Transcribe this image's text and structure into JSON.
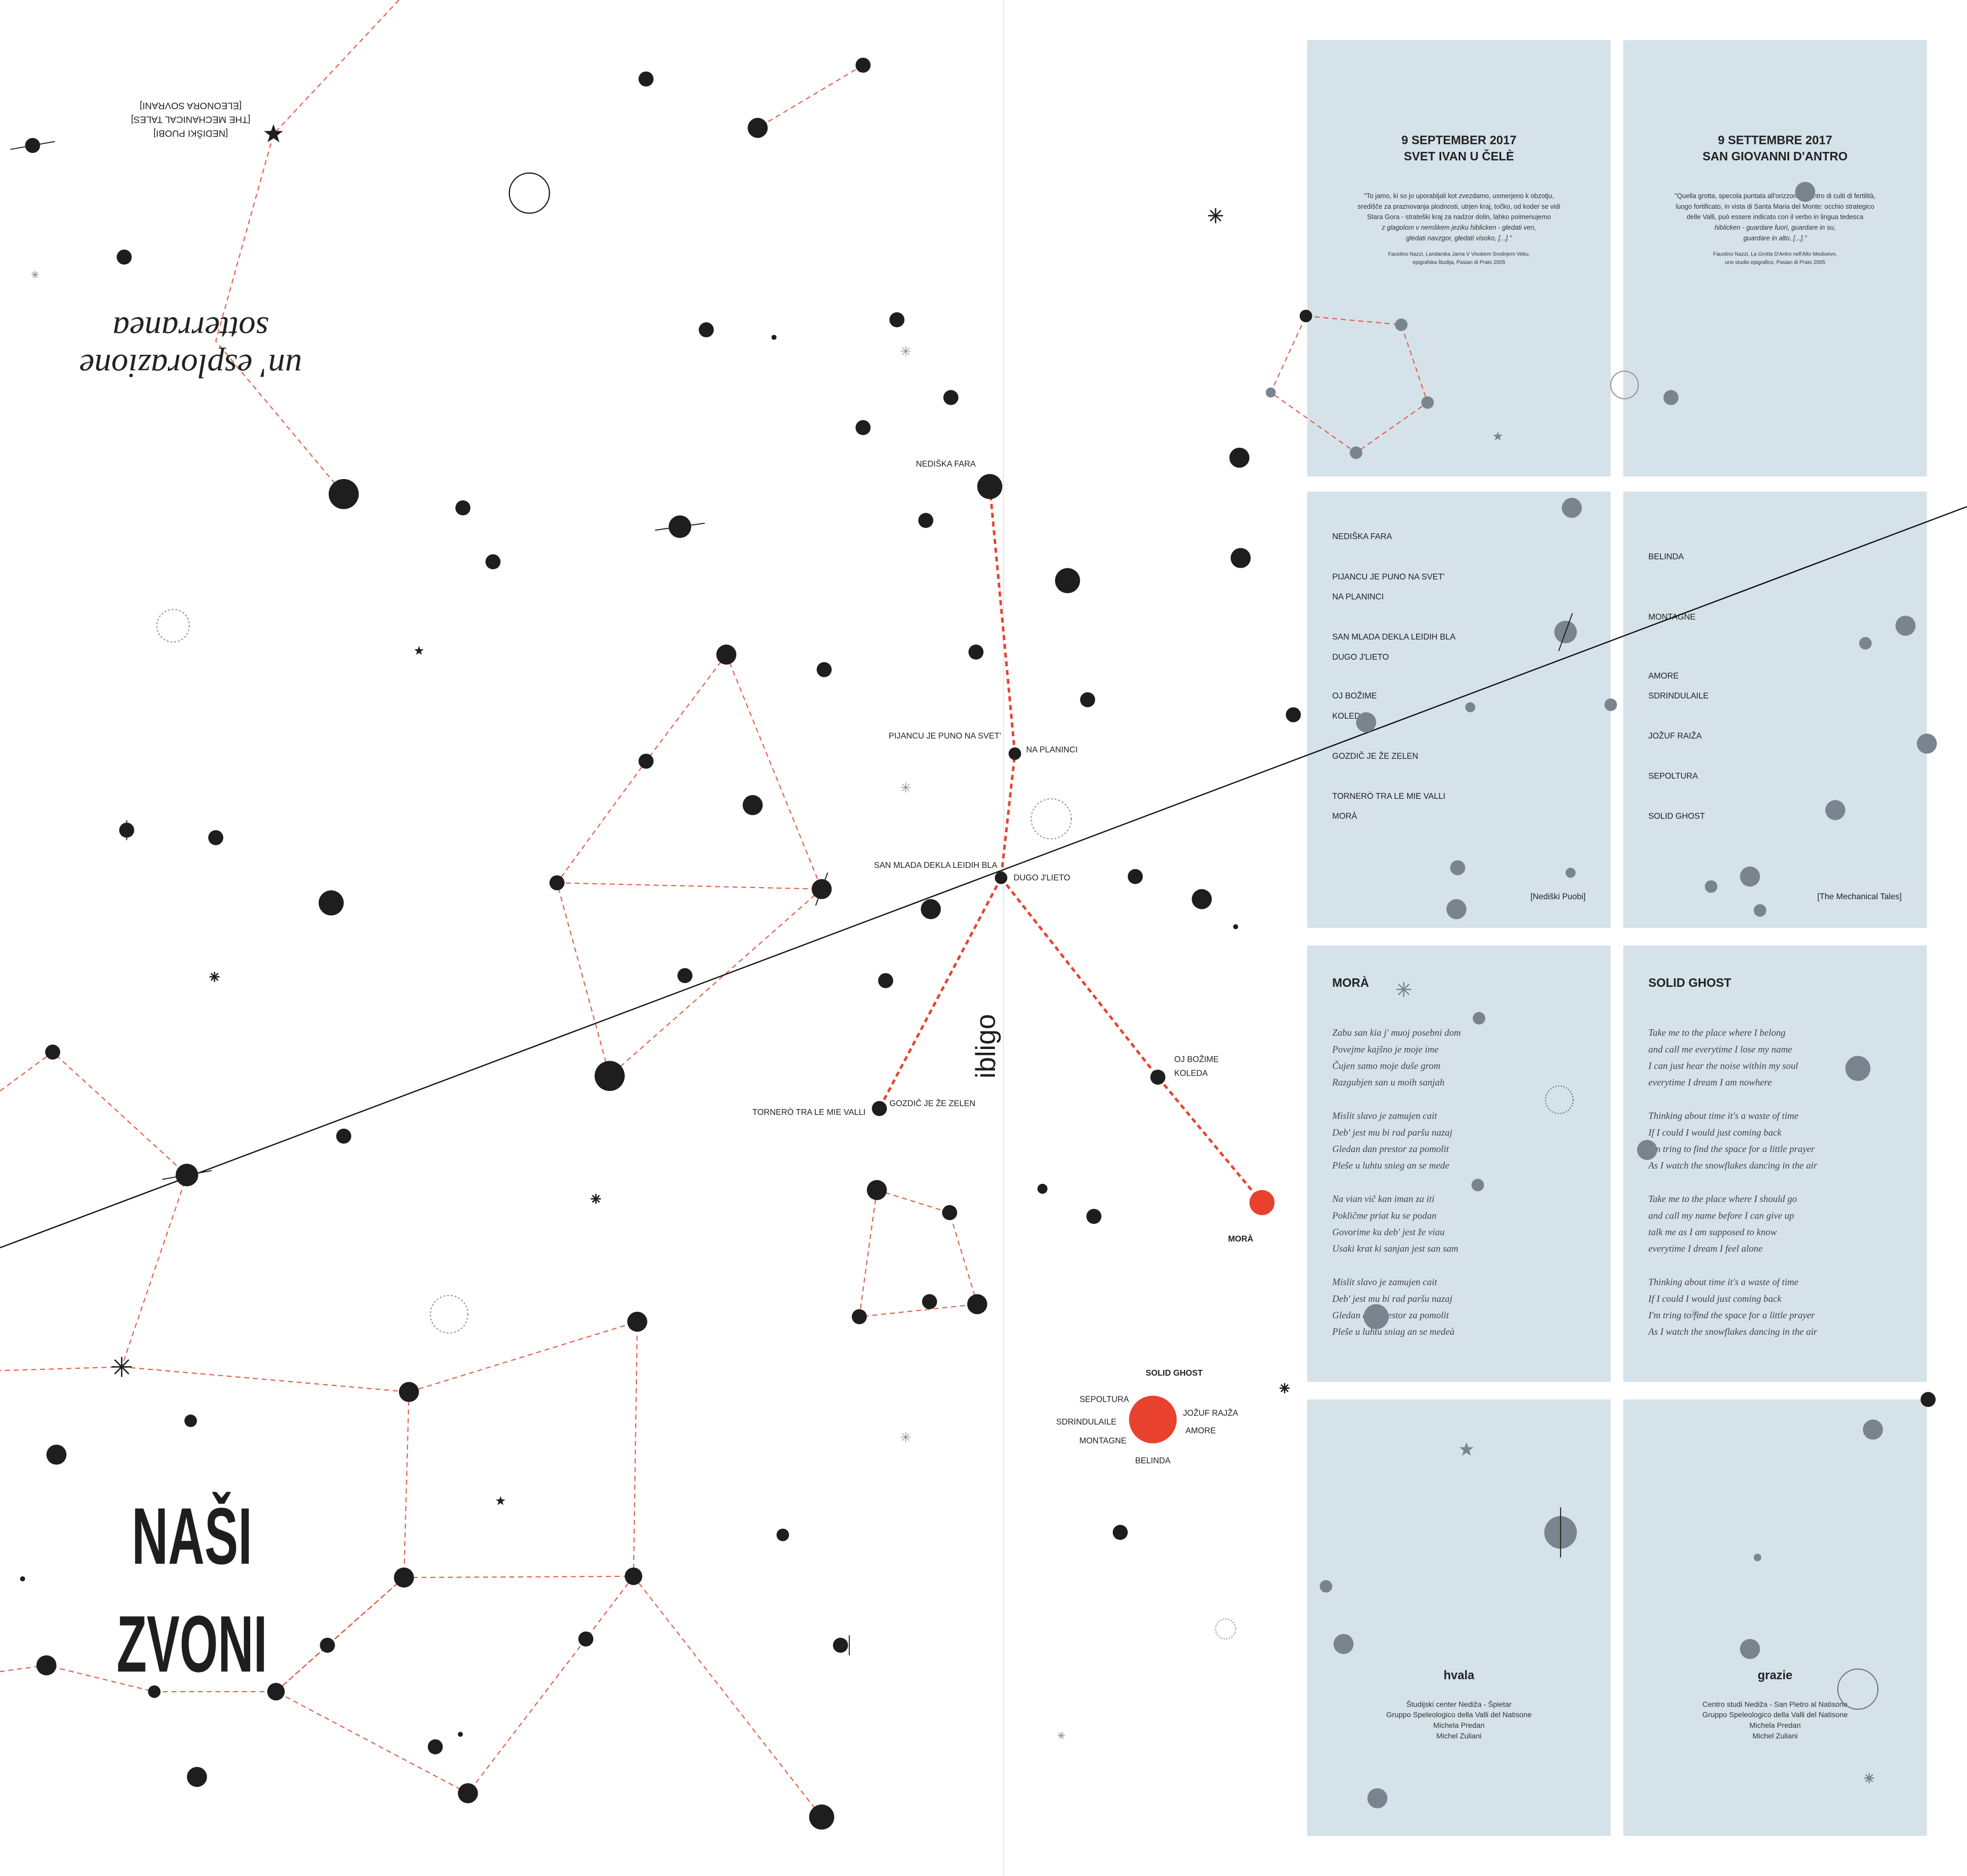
{
  "colors": {
    "panel": "#d5e2ea",
    "accent_red": "#e8412e",
    "dash_red": "#e0604a",
    "ink": "#1e1e1e",
    "grey_dot": "#7a848e"
  },
  "cover": {
    "subtitle_line1": "un' esplorazione",
    "subtitle_line2": "sotterranea",
    "credits": [
      "[NEDIŠKI PUOBI]",
      "[THE MECHANICAL TALES]",
      "[ELEONORA SOVRANI]"
    ],
    "title_line1": "NAŠI",
    "title_line2": "ZVONI"
  },
  "map": {
    "vertical_label": "ibligo",
    "route_labels": {
      "nediska_fara": "NEDIŠKA FARA",
      "pijancu": "PIJANCU JE PUNO NA SVET'",
      "na_planinci": "NA PLANINCI",
      "san_mlada": "SAN MLADA DEKLA LEIDIH BLA",
      "dugo": "DUGO J'LIETO",
      "oj_bozime": "OJ BOŽIME",
      "koleda": "KOLEDA",
      "tornero": "TORNERÒ TRA LE MIE VALLI",
      "gozdic": "GOZDIČ JE ŽE ZELEN",
      "mora": "MORÀ"
    },
    "ghost_labels": {
      "title": "SOLID GHOST",
      "sepoltura": "SEPOLTURA",
      "sdrindulaile": "SDRINDULAILE",
      "montagne": "MONTAGNE",
      "jozuf": "JOŽUF RAJŽA",
      "amore": "AMORE",
      "belinda": "BELINDA"
    }
  },
  "panels": {
    "event_sl": {
      "date": "9 SEPTEMBER 2017",
      "place": "SVET IVAN U ČELÈ",
      "quote": [
        "\"To jamo, ki so jo uporabljali kot zvezdamo, usmerjeno k obzotju,",
        "središče za praznovanja plodnosti, utrjen kraj, točko, od koder se vidi",
        "Stara Gora - strateški kraj za nadzor dolin, lahko poimenujemo",
        "z glagolom v nemškem jeziku hiblicken - gledati ven,",
        "gledati navzgor, gledati visoko, [...].\""
      ],
      "citation": [
        "Faustino Nazzi, Landarska Jama V Visokem Srednjem Veku,",
        "epigrafska študija, Pasian di Prato 2005"
      ]
    },
    "event_it": {
      "date": "9 SETTEMBRE 2017",
      "place": "SAN GIOVANNI D'ANTRO",
      "quote": [
        "\"Quella grotta, specola puntata all'orizzonte, centro di culti di fertilità,",
        "luogo fortificato, in vista di Santa Maria del Monte: occhio strategico",
        "delle Valli, può essere indicato con il verbo in lingua tedesca",
        "hiblicken - guardare fuori, guardare in su,",
        "guardare in alto, [...].\""
      ],
      "citation": [
        "Faustino Nazzi, La Grotta D'Antro nell'Alto Medioevo,",
        "uno studio epigrafico, Pasian di Prato 2005"
      ]
    },
    "setlist_puobi": {
      "songs": [
        "NEDIŠKA FARA",
        "PIJANCU JE PUNO NA SVET'",
        "NA PLANINCI",
        "SAN MLADA DEKLA LEIDIH BLA",
        "DUGO J'LIETO",
        "OJ BOŽIME",
        "KOLEDA",
        "GOZDIČ JE ŽE ZELEN",
        "TORNERÒ TRA LE MIE VALLI",
        "MORÀ"
      ],
      "band": "[Nediški Puobi]"
    },
    "setlist_tales": {
      "songs": [
        "BELINDA",
        "MONTAGNE",
        "AMORE",
        "SDRINDULAILE",
        "JOŽUF RAIŽA",
        "SEPOLTURA",
        "SOLID GHOST"
      ],
      "band": "[The Mechanical Tales]"
    },
    "lyrics_mora": {
      "title": "MORÀ",
      "stanzas": [
        [
          "Zabu san kia j' muoj posebni dom",
          "Povejme kajšno je moje ime",
          "Čujen samo moje duše grom",
          "Razgubjen san u moih sanjah"
        ],
        [
          "Mislit slavo je zamujen cait",
          "Deb' jest mu bi rad paršu nazaj",
          "Gledan dan prestor za pomolit",
          "Pleše u luhtu snieg an se mede"
        ],
        [
          "Na vian vič kan iman za iti",
          "Pokličme priat ku se podan",
          "Govorime ku deb' jest že viau",
          "Usaki krat ki sanjan jest san sam"
        ],
        [
          "Mislit slavo je zamujen cait",
          "Deb' jest mu bi rad paršu nazaj",
          "Gledan dan prestor za pomolit",
          "Pleše u luhtu sniag an se medeà"
        ]
      ]
    },
    "lyrics_ghost": {
      "title": "SOLID GHOST",
      "stanzas": [
        [
          "Take me to the place where I belong",
          "and call me everytime I lose my name",
          "I can just hear the noise within my soul",
          "everytime I dream I am nowhere"
        ],
        [
          "Thinking about time it's a waste of time",
          "If I could I would just coming back",
          "I'm tring to find the space for a little prayer",
          "As I watch the snowflakes dancing in the air"
        ],
        [
          "Take me to the place where I should go",
          "and call my name before I can give up",
          "talk me as I am supposed to know",
          "everytime I dream I feel alone"
        ],
        [
          "Thinking about time it's a waste of time",
          "If I could I would just coming back",
          "I'm tring to find the space for a little prayer",
          "As I watch the snowflakes dancing in the air"
        ]
      ]
    },
    "thanks_sl": {
      "title": "hvala",
      "names": [
        "Študijski center Nediža - Špietar",
        "Gruppo Speleologico della Valli del Natisone",
        "Michela Predan",
        "Michel Zuliani"
      ]
    },
    "thanks_it": {
      "title": "grazie",
      "names": [
        "Centro studi Nediža - San Pietro al Natisone",
        "Gruppo Speleologico della Valli del Natisone",
        "Michela Predan",
        "Michel Zuliani"
      ]
    }
  }
}
